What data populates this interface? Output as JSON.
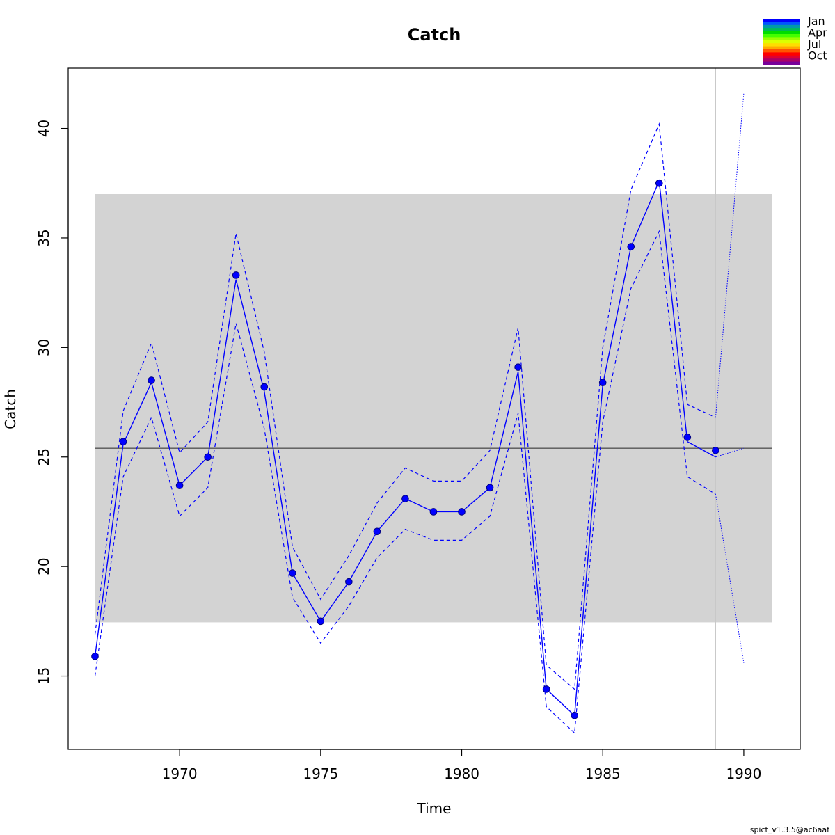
{
  "chart_data": {
    "type": "line",
    "title": "Catch",
    "xlabel": "Time",
    "ylabel": "Catch",
    "xlim": [
      1966.05,
      1992.0
    ],
    "ylim": [
      11.65,
      42.75
    ],
    "x_ticks": [
      1970,
      1975,
      1980,
      1985,
      1990
    ],
    "y_ticks": [
      15,
      20,
      25,
      30,
      35,
      40
    ],
    "observed": {
      "x": [
        1967,
        1968,
        1969,
        1970,
        1971,
        1972,
        1973,
        1974,
        1975,
        1976,
        1977,
        1978,
        1979,
        1980,
        1981,
        1982,
        1983,
        1984,
        1985,
        1986,
        1987,
        1988,
        1989
      ],
      "y": [
        15.9,
        25.7,
        28.5,
        23.7,
        25.0,
        33.3,
        28.2,
        19.7,
        17.5,
        19.3,
        21.6,
        23.1,
        22.5,
        22.5,
        23.6,
        29.1,
        14.4,
        13.2,
        28.4,
        34.6,
        37.5,
        25.9,
        25.3
      ]
    },
    "estimate": {
      "x": [
        1967,
        1968,
        1969,
        1970,
        1971,
        1972,
        1973,
        1974,
        1975,
        1976,
        1977,
        1978,
        1979,
        1980,
        1981,
        1982,
        1983,
        1984,
        1985,
        1986,
        1987,
        1988,
        1989
      ],
      "y": [
        15.9,
        25.6,
        28.4,
        23.7,
        25.0,
        33.1,
        28.0,
        19.7,
        17.5,
        19.3,
        21.6,
        23.1,
        22.5,
        22.5,
        23.6,
        28.9,
        14.4,
        13.2,
        28.3,
        34.6,
        37.6,
        25.7,
        25.0
      ]
    },
    "upper_ci": {
      "x": [
        1967,
        1968,
        1969,
        1970,
        1971,
        1972,
        1973,
        1974,
        1975,
        1976,
        1977,
        1978,
        1979,
        1980,
        1981,
        1982,
        1983,
        1984,
        1985,
        1986,
        1987,
        1988,
        1989
      ],
      "y": [
        16.9,
        27.1,
        30.2,
        25.2,
        26.6,
        35.2,
        29.8,
        20.9,
        18.5,
        20.5,
        22.9,
        24.5,
        23.9,
        23.9,
        25.3,
        30.9,
        15.5,
        14.4,
        30.0,
        37.2,
        40.2,
        27.4,
        26.8
      ]
    },
    "lower_ci": {
      "x": [
        1967,
        1968,
        1969,
        1970,
        1971,
        1972,
        1973,
        1974,
        1975,
        1976,
        1977,
        1978,
        1979,
        1980,
        1981,
        1982,
        1983,
        1984,
        1985,
        1986,
        1987,
        1988,
        1989
      ],
      "y": [
        15.0,
        24.1,
        26.8,
        22.3,
        23.6,
        31.1,
        26.3,
        18.6,
        16.5,
        18.2,
        20.4,
        21.7,
        21.2,
        21.2,
        22.3,
        27.0,
        13.6,
        12.4,
        26.6,
        32.7,
        35.3,
        24.1,
        23.3
      ]
    },
    "prediction": {
      "x": [
        1989,
        1990
      ],
      "y": [
        25.0,
        25.4
      ],
      "upper": [
        26.8,
        41.6
      ],
      "lower": [
        23.3,
        15.6
      ]
    },
    "reference_line": 25.4,
    "reference_band": {
      "x": [
        1967,
        1991
      ],
      "y": [
        17.45,
        37.0
      ]
    },
    "vertical_line_x": 1989,
    "legend": {
      "position": "top-right",
      "labels": [
        "Jan",
        "Apr",
        "Jul",
        "Oct"
      ],
      "colors": [
        "#0000ff",
        "#0055ff",
        "#0099aa",
        "#00bb55",
        "#00dd00",
        "#44ff00",
        "#99ff00",
        "#ddff00",
        "#ffdd00",
        "#ffaa00",
        "#ff5500",
        "#ff0000",
        "#dd0033",
        "#aa0066",
        "#770099"
      ]
    },
    "colors": {
      "series": "#0000ff",
      "band": "#d3d3d3",
      "reference_line": "#555555",
      "vertical_line": "#c8c8c8"
    }
  },
  "footer": {
    "version": "spict_v1.3.5@ac6aaf"
  }
}
